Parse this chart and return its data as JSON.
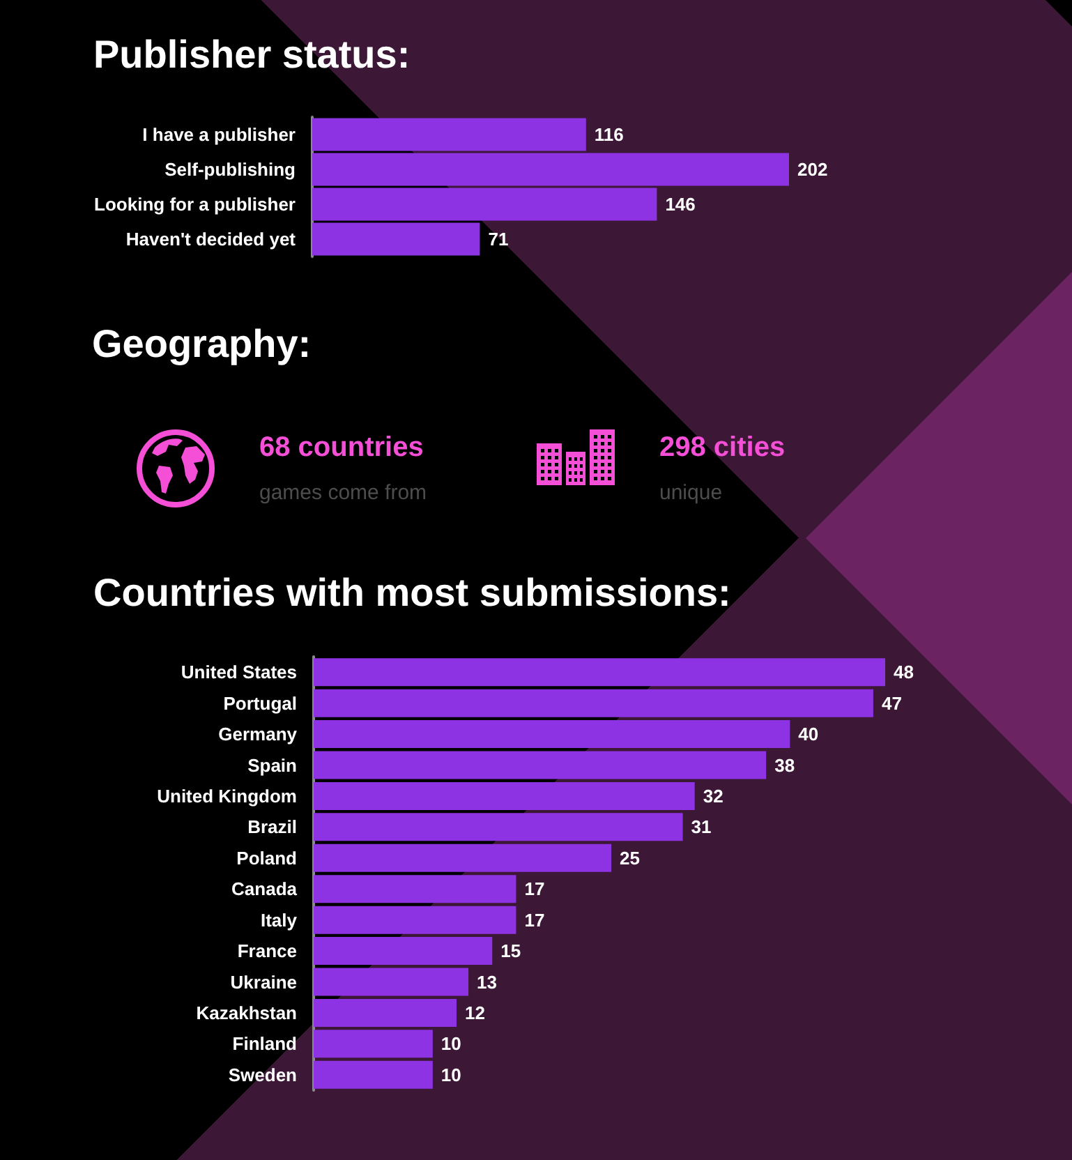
{
  "chart_data": [
    {
      "type": "bar",
      "orientation": "horizontal",
      "title": "Publisher status:",
      "categories": [
        "I have a publisher",
        "Self-publishing",
        "Looking for a publisher",
        "Haven't decided yet"
      ],
      "values": [
        116,
        202,
        146,
        71
      ],
      "color": "#8e33e3",
      "data_labels": true
    },
    {
      "type": "other",
      "title": "Geography:",
      "annotations": [
        "68 countries",
        "games come from",
        "298 cities",
        "unique"
      ]
    },
    {
      "type": "bar",
      "orientation": "horizontal",
      "title": "Countries with most submissions:",
      "categories": [
        "United States",
        "Portugal",
        "Germany",
        "Spain",
        "United Kingdom",
        "Brazil",
        "Poland",
        "Canada",
        "Italy",
        "France",
        "Ukraine",
        "Kazakhstan",
        "Finland",
        "Sweden"
      ],
      "values": [
        48,
        47,
        40,
        38,
        32,
        31,
        25,
        17,
        17,
        15,
        13,
        12,
        10,
        10
      ],
      "color": "#8e33e3",
      "data_labels": true
    }
  ]
}
